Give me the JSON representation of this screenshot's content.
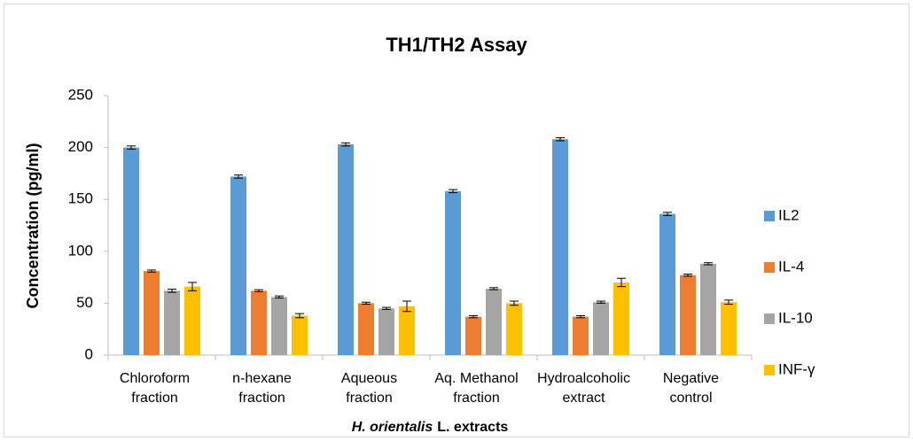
{
  "chart_data": {
    "type": "bar",
    "title": "TH1/TH2 Assay",
    "ylabel": "Concentration (pg/ml)",
    "xlabel": [
      "H. orientalis",
      "L. extracts"
    ],
    "categories": [
      [
        "Chloroform",
        "fraction"
      ],
      [
        "n-hexane",
        "fraction"
      ],
      [
        "Aqueous",
        "fraction"
      ],
      [
        "Aq. Methanol",
        "fraction"
      ],
      [
        "Hydroalcoholic",
        "extract"
      ],
      [
        "Negative",
        "control"
      ]
    ],
    "series": [
      {
        "name": "IL2",
        "color": "#5b9bd5",
        "values": [
          200,
          172,
          203,
          158,
          208,
          136
        ],
        "errors": [
          1.5,
          1.5,
          1.5,
          1.5,
          1.5,
          1.5
        ]
      },
      {
        "name": "IL-4",
        "color": "#ed7d31",
        "values": [
          81,
          62,
          50,
          37,
          37,
          77
        ],
        "errors": [
          1,
          1,
          1,
          1,
          1,
          1
        ]
      },
      {
        "name": "IL-10",
        "color": "#a5a5a5",
        "values": [
          62,
          56,
          45,
          64,
          51,
          88
        ],
        "errors": [
          1.5,
          1,
          1,
          1,
          1,
          1
        ]
      },
      {
        "name": "INF-γ",
        "color": "#ffc000",
        "values": [
          66,
          38,
          47,
          50,
          70,
          51
        ],
        "errors": [
          4,
          2,
          5,
          2,
          4,
          2
        ]
      }
    ],
    "ylim": [
      0,
      250
    ],
    "yticks": [
      0,
      50,
      100,
      150,
      200,
      250
    ],
    "grid": false,
    "legend": "right"
  }
}
